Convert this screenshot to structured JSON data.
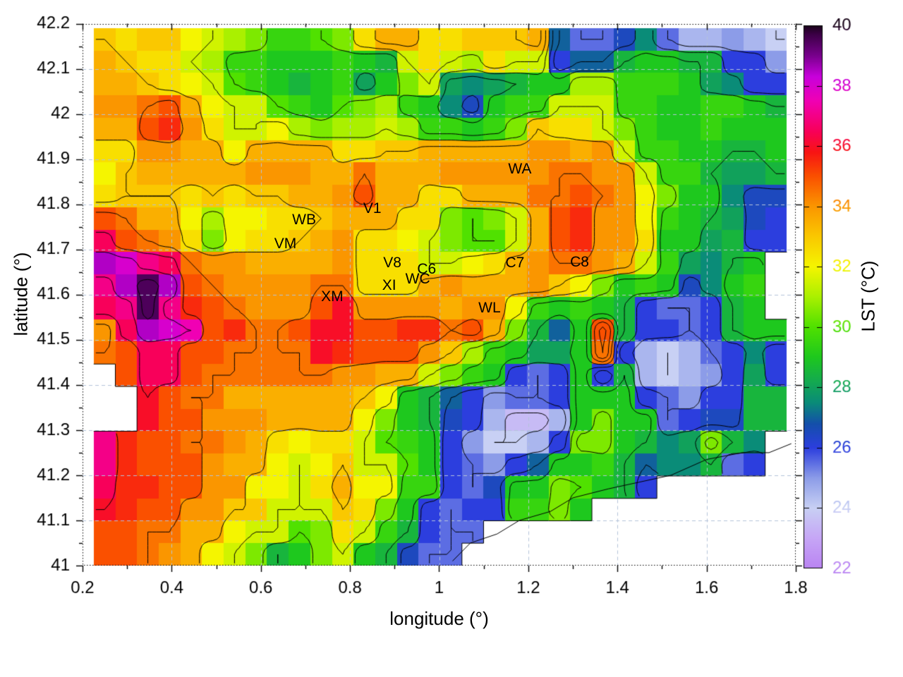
{
  "chart_data": {
    "type": "heatmap",
    "title": "",
    "xlabel": "longitude (°)",
    "ylabel": "latitude (°)",
    "colorbar_label": "LST (°C)",
    "xlim": [
      0.2,
      1.8
    ],
    "ylim": [
      41.0,
      42.2
    ],
    "zlim": [
      22,
      40
    ],
    "grid": "dashed-major",
    "legend_position": "right-colorbar",
    "x_ticks": [
      "0.2",
      "0.4",
      "0.6",
      "0.8",
      "1",
      "1.2",
      "1.4",
      "1.6",
      "1.8"
    ],
    "y_ticks": [
      "41",
      "41.1",
      "41.2",
      "41.3",
      "41.4",
      "41.5",
      "41.6",
      "41.7",
      "41.8",
      "41.9",
      "42",
      "42.1",
      "42.2"
    ],
    "cb_ticks": [
      "22",
      "24",
      "26",
      "28",
      "30",
      "32",
      "34",
      "36",
      "38",
      "40"
    ],
    "data_extent": {
      "lon": [
        0.225,
        1.78
      ],
      "lat": [
        41.0,
        42.19
      ]
    },
    "grid_size": {
      "cols": 32,
      "rows": 24
    },
    "lst_values": [
      [
        33,
        32.5,
        33,
        33,
        32,
        31.5,
        31,
        30.5,
        29.5,
        29.5,
        30,
        30.5,
        32.5,
        33.5,
        33.5,
        32.5,
        32.5,
        33,
        33,
        33,
        33.5,
        27,
        25.5,
        25.5,
        26.5,
        27.5,
        25.5,
        24.5,
        24.5,
        25,
        24.5,
        24
      ],
      [
        33.5,
        33,
        32.5,
        32.5,
        31.5,
        31,
        29.5,
        29.5,
        29,
        29,
        29,
        29.5,
        29,
        28.5,
        31.5,
        32.5,
        31.5,
        31,
        32.5,
        31.5,
        31.5,
        26,
        27,
        27,
        28.5,
        29,
        29,
        28.5,
        28.5,
        26,
        26,
        25
      ],
      [
        33.5,
        33.5,
        33,
        32.5,
        32,
        31.5,
        30,
        29.5,
        29,
        28.5,
        29,
        29.5,
        28,
        29,
        30.5,
        31.5,
        28,
        27.5,
        28,
        28.5,
        29,
        29,
        31,
        31,
        29.5,
        29.5,
        29.5,
        29,
        28,
        27.5,
        26,
        26
      ],
      [
        34,
        34,
        34.5,
        35,
        33.5,
        32,
        31.5,
        31.5,
        30,
        29.5,
        29,
        30,
        30.5,
        31,
        29.5,
        29,
        27.5,
        26.5,
        29,
        29.5,
        29.5,
        31.5,
        31.5,
        31.5,
        29.5,
        29.5,
        29,
        29,
        29.5,
        29.5,
        29,
        28.5
      ],
      [
        33.5,
        33.5,
        35,
        35.5,
        34,
        32.5,
        31.5,
        31.5,
        32,
        31,
        30.5,
        31,
        31,
        31.5,
        31,
        29.5,
        29.5,
        29,
        29.5,
        30.5,
        33,
        32.5,
        32.5,
        31.5,
        30.5,
        29.5,
        29,
        29,
        29.5,
        29,
        29,
        29
      ],
      [
        32.5,
        32.5,
        34,
        34,
        33.5,
        33.5,
        32,
        33.5,
        33.5,
        33.5,
        33.5,
        32.5,
        32.5,
        33,
        33,
        33.5,
        33.5,
        33.5,
        33.5,
        33.5,
        34,
        34,
        33.5,
        34,
        31.5,
        29.5,
        29.5,
        29,
        29,
        28.5,
        28.5,
        29
      ],
      [
        32,
        33,
        33.5,
        33.5,
        33.5,
        33.5,
        33.5,
        34,
        34,
        34,
        33.5,
        33.5,
        34.5,
        33.5,
        33.5,
        33.5,
        34,
        34,
        34,
        34,
        34,
        34.5,
        34.5,
        34,
        34,
        31.5,
        29.5,
        29.5,
        28.5,
        28,
        28,
        28.5
      ],
      [
        32.5,
        33,
        33,
        33,
        32.5,
        33,
        32.5,
        33,
        33,
        33.5,
        33.5,
        34,
        35,
        33.5,
        33.5,
        32.5,
        32.5,
        33.5,
        33.5,
        33.5,
        34.5,
        34.5,
        35,
        34.5,
        34,
        32,
        30.5,
        29,
        29,
        27.5,
        26.5,
        26.5
      ],
      [
        35,
        34.5,
        33.5,
        33.5,
        32,
        31,
        32,
        32,
        32.5,
        32.5,
        33,
        33.5,
        33.5,
        33.5,
        32.5,
        32.5,
        30.5,
        30,
        30.5,
        31.5,
        33.5,
        35,
        35.5,
        34,
        34,
        32,
        29.5,
        29,
        28.5,
        28,
        26.5,
        26
      ],
      [
        36.5,
        35,
        34.5,
        34,
        32.5,
        30.5,
        32,
        32.5,
        32.5,
        33,
        33.5,
        34,
        32.5,
        32.5,
        32,
        31.5,
        30.5,
        30,
        30,
        31.5,
        33.5,
        35,
        35.5,
        34,
        34,
        32.5,
        29,
        29,
        28,
        28.5,
        26,
        26
      ],
      [
        38.5,
        38,
        37,
        36.5,
        34.5,
        34,
        34,
        33.5,
        33.5,
        33.5,
        33.5,
        34,
        32.5,
        32.5,
        32.5,
        31.5,
        31.5,
        32,
        32.5,
        33.5,
        34,
        34.5,
        34.5,
        34,
        33.5,
        31.5,
        29.5,
        28,
        27.5,
        28.5,
        29,
        null
      ],
      [
        37,
        38.5,
        39.5,
        38.5,
        35,
        34.5,
        34,
        34,
        34,
        34,
        34.5,
        34.5,
        32.5,
        32.5,
        32.5,
        33.5,
        34,
        33.5,
        33.5,
        33.5,
        34,
        33,
        32,
        30.5,
        29,
        29.5,
        29,
        26.5,
        27.5,
        29,
        29.5,
        null
      ],
      [
        36.5,
        37,
        39.5,
        37,
        35.5,
        35,
        34.5,
        34,
        34,
        34,
        35,
        36,
        34,
        34,
        34,
        34,
        33.5,
        34,
        34,
        32,
        29.5,
        29,
        29.5,
        29,
        28.5,
        26,
        25.5,
        25.5,
        26,
        28.5,
        29,
        null
      ],
      [
        34,
        36.5,
        38.5,
        38,
        37.5,
        35,
        35.5,
        34.5,
        34.5,
        35,
        36,
        36,
        35,
        35,
        35.5,
        35.5,
        34.5,
        35,
        33.5,
        30.5,
        28.5,
        27,
        29,
        35,
        28.5,
        26,
        26,
        25.5,
        26,
        28.5,
        29,
        29
      ],
      [
        34.5,
        35,
        36.5,
        36.5,
        35,
        35,
        34.5,
        34.5,
        34.5,
        34.5,
        36,
        35.5,
        35,
        35,
        35,
        34,
        33,
        31,
        29.5,
        29,
        28,
        28,
        29,
        34.5,
        26,
        24.5,
        24,
        24.5,
        25.5,
        26,
        27.5,
        26
      ],
      [
        null,
        35,
        36.5,
        36.5,
        35,
        34.5,
        34.5,
        34.5,
        34.5,
        34.5,
        34.5,
        34,
        34,
        33.5,
        33.5,
        31.5,
        30.5,
        29.5,
        29,
        26,
        25.5,
        26,
        29,
        26,
        28.5,
        24.5,
        24,
        24.5,
        25,
        26,
        28,
        26
      ],
      [
        null,
        null,
        36,
        35,
        34.5,
        34.5,
        33.5,
        33.5,
        33.5,
        33.5,
        33.5,
        33.5,
        33,
        32,
        29,
        28.5,
        27,
        26,
        25,
        25.5,
        25.5,
        26,
        29,
        29,
        29,
        26,
        25.5,
        25,
        26,
        26,
        28.5,
        28.5
      ],
      [
        null,
        null,
        36,
        35,
        35,
        34,
        34,
        34,
        33.5,
        33.5,
        33.5,
        33.5,
        32,
        30.5,
        29,
        28.5,
        26.5,
        26,
        24.5,
        23.5,
        23.5,
        24.5,
        29,
        30.5,
        29,
        29,
        25.5,
        26,
        26.5,
        26.5,
        28.5,
        28.5
      ],
      [
        37,
        35.5,
        35,
        35,
        34.5,
        34.5,
        34,
        33.5,
        32.5,
        32,
        32.5,
        32.5,
        31.5,
        30,
        29.5,
        29,
        26,
        25,
        24,
        24,
        24.5,
        26,
        30.5,
        30.5,
        29,
        28.5,
        27.5,
        28,
        30.5,
        28.5,
        27.5,
        null
      ],
      [
        37,
        35.5,
        35,
        35,
        35,
        34,
        33.5,
        33.5,
        32,
        31.5,
        32,
        33,
        31.5,
        31.5,
        30,
        29,
        26,
        25.5,
        25,
        26,
        27,
        29,
        29,
        29.5,
        28.5,
        27,
        27.5,
        27.5,
        28.5,
        25.5,
        26,
        null
      ],
      [
        36.5,
        35.5,
        35.5,
        35,
        35,
        34,
        34,
        32,
        32,
        31.5,
        32.5,
        33.5,
        32,
        32,
        29.5,
        29.5,
        26,
        25.5,
        26.5,
        29,
        29,
        30.5,
        30,
        29,
        28.5,
        26,
        null,
        null,
        null,
        null,
        null,
        null
      ],
      [
        36,
        35.5,
        35,
        35,
        34,
        34,
        33,
        33,
        31.5,
        31.5,
        31.5,
        33,
        32.5,
        30.5,
        29,
        26,
        25.5,
        26,
        26,
        29.5,
        29.5,
        30.5,
        29,
        null,
        null,
        null,
        null,
        null,
        null,
        null,
        null,
        null
      ],
      [
        35,
        35,
        34.5,
        34.5,
        33.5,
        33.5,
        32,
        31.5,
        31.5,
        30,
        30.5,
        32.5,
        31.5,
        29.5,
        28.5,
        26,
        25.5,
        25.5,
        null,
        null,
        null,
        null,
        null,
        null,
        null,
        null,
        null,
        null,
        null,
        null,
        null,
        null
      ],
      [
        35,
        35,
        34.5,
        34,
        33.5,
        32,
        31.5,
        30.5,
        28.5,
        29,
        30.5,
        31.5,
        29,
        28.5,
        26.5,
        25.5,
        25.5,
        null,
        null,
        null,
        null,
        null,
        null,
        null,
        null,
        null,
        null,
        null,
        null,
        null,
        null,
        null
      ]
    ],
    "palette_stops": [
      [
        22,
        "#ba84f2"
      ],
      [
        23,
        "#c6a6f6"
      ],
      [
        24,
        "#c8d0f4"
      ],
      [
        25,
        "#8c9ce8"
      ],
      [
        26,
        "#2c3ede"
      ],
      [
        26.8,
        "#1450aa"
      ],
      [
        27.5,
        "#0a8c78"
      ],
      [
        28.2,
        "#14aa50"
      ],
      [
        29,
        "#1ec81e"
      ],
      [
        30,
        "#50e100"
      ],
      [
        31,
        "#aaf000"
      ],
      [
        32,
        "#f5f500"
      ],
      [
        33,
        "#fac800"
      ],
      [
        34,
        "#fa9600"
      ],
      [
        35,
        "#fa5000"
      ],
      [
        35.8,
        "#f81414"
      ],
      [
        36.5,
        "#f8005a"
      ],
      [
        37.5,
        "#f000b4"
      ],
      [
        38.3,
        "#c800dc"
      ],
      [
        39,
        "#78008c"
      ],
      [
        39.7,
        "#3c0046"
      ],
      [
        40,
        "#190519"
      ]
    ],
    "contour_levels": [
      24,
      25.5,
      27,
      28.5,
      30,
      31.5,
      33,
      34.5,
      36,
      37.5,
      39
    ],
    "contour_color": "#000000",
    "grid_color": "#b4c3da",
    "stations": [
      {
        "id": "WA",
        "lon": 1.181,
        "lat": 41.877
      },
      {
        "id": "WB",
        "lon": 0.697,
        "lat": 41.765
      },
      {
        "id": "VM",
        "lon": 0.655,
        "lat": 41.712
      },
      {
        "id": "V1",
        "lon": 0.85,
        "lat": 41.79
      },
      {
        "id": "V8",
        "lon": 0.895,
        "lat": 41.67
      },
      {
        "id": "C6",
        "lon": 0.972,
        "lat": 41.656
      },
      {
        "id": "WC",
        "lon": 0.952,
        "lat": 41.634
      },
      {
        "id": "XI",
        "lon": 0.888,
        "lat": 41.62
      },
      {
        "id": "XM",
        "lon": 0.76,
        "lat": 41.595
      },
      {
        "id": "WL",
        "lon": 1.113,
        "lat": 41.57
      },
      {
        "id": "C7",
        "lon": 1.17,
        "lat": 41.67
      },
      {
        "id": "C8",
        "lon": 1.315,
        "lat": 41.672
      }
    ],
    "extra_contour": [
      [
        1.03,
        41.01
      ],
      [
        1.07,
        41.05
      ],
      [
        1.13,
        41.07
      ],
      [
        1.18,
        41.1
      ],
      [
        1.25,
        41.12
      ],
      [
        1.3,
        41.15
      ],
      [
        1.38,
        41.17
      ],
      [
        1.45,
        41.185
      ],
      [
        1.52,
        41.2
      ],
      [
        1.6,
        41.235
      ],
      [
        1.68,
        41.25
      ],
      [
        1.74,
        41.25
      ],
      [
        1.79,
        41.27
      ]
    ]
  }
}
